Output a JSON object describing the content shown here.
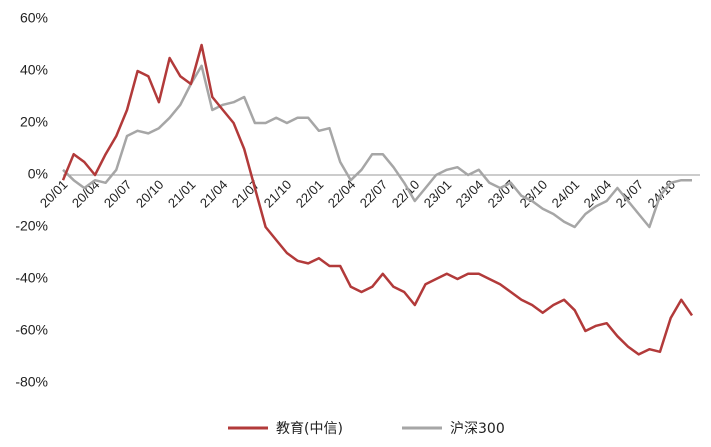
{
  "chart_data": {
    "type": "line",
    "categories": [
      "20/01",
      null,
      null,
      "20/04",
      null,
      null,
      "20/07",
      null,
      null,
      "20/10",
      null,
      null,
      "21/01",
      null,
      null,
      "21/04",
      null,
      null,
      "21/07",
      null,
      null,
      "21/10",
      null,
      null,
      "22/01",
      null,
      null,
      "22/04",
      null,
      null,
      "22/07",
      null,
      null,
      "22/10",
      null,
      null,
      "23/01",
      null,
      null,
      "23/04",
      null,
      null,
      "23/07",
      null,
      null,
      "23/10",
      null,
      null,
      "24/01",
      null,
      null,
      "24/04",
      null,
      null,
      "24/07",
      null,
      null,
      "24/10",
      null,
      null
    ],
    "series": [
      {
        "name": "教育(中信)",
        "color": "#b23a3a",
        "values": [
          -2,
          8,
          5,
          0,
          8,
          15,
          25,
          40,
          38,
          28,
          45,
          38,
          35,
          50,
          30,
          25,
          20,
          10,
          -5,
          -20,
          -25,
          -30,
          -33,
          -34,
          -32,
          -35,
          -35,
          -43,
          -45,
          -43,
          -38,
          -43,
          -45,
          -50,
          -42,
          -40,
          -38,
          -40,
          -38,
          -38,
          -40,
          -42,
          -45,
          -48,
          -50,
          -53,
          -50,
          -48,
          -52,
          -60,
          -58,
          -57,
          -62,
          -66,
          -69,
          -67,
          -68,
          -55,
          -48,
          -54
        ]
      },
      {
        "name": "沪深300",
        "color": "#a6a6a6",
        "values": [
          2,
          -2,
          -5,
          -2,
          -3,
          2,
          15,
          17,
          16,
          18,
          22,
          27,
          35,
          42,
          25,
          27,
          28,
          30,
          20,
          20,
          22,
          20,
          22,
          22,
          17,
          18,
          5,
          -2,
          2,
          8,
          8,
          3,
          -3,
          -10,
          -5,
          0,
          2,
          3,
          0,
          2,
          -3,
          -5,
          -3,
          -8,
          -10,
          -13,
          -15,
          -18,
          -20,
          -15,
          -12,
          -10,
          -5,
          -10,
          -15,
          -20,
          -8,
          -3,
          -2,
          -2
        ]
      }
    ],
    "ylim": [
      -80,
      60
    ],
    "yticks": [
      {
        "value": -80,
        "label": "-80%"
      },
      {
        "value": -60,
        "label": "-60%"
      },
      {
        "value": -40,
        "label": "-40%"
      },
      {
        "value": -20,
        "label": "-20%"
      },
      {
        "value": 0,
        "label": "0%"
      },
      {
        "value": 20,
        "label": "20%"
      },
      {
        "value": 40,
        "label": "40%"
      },
      {
        "value": 60,
        "label": "60%"
      }
    ],
    "grid": false,
    "legend": "bottom"
  }
}
